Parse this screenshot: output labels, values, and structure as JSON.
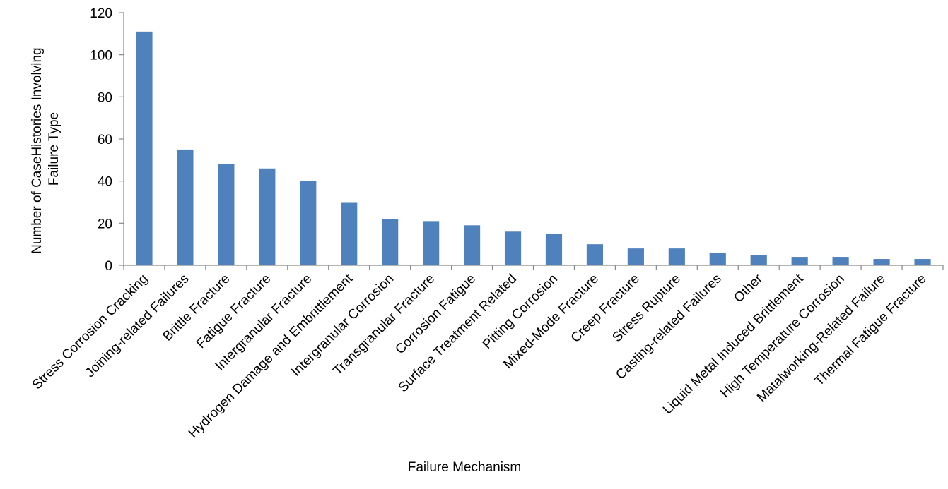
{
  "chart_data": {
    "type": "bar",
    "title": "",
    "xlabel": "Failure Mechanism",
    "ylabel_lines": [
      "Number of CaseHistories Involving",
      "Failure Type"
    ],
    "ylim": [
      0,
      120
    ],
    "yticks": [
      0,
      20,
      40,
      60,
      80,
      100,
      120
    ],
    "grid": false,
    "legend": "none",
    "bar_color": "#4F81BD",
    "categories": [
      "Stress Corrosion Cracking",
      "Joining-related Failures",
      "Brittle Fracture",
      "Fatigue Fracture",
      "Intergranular Fracture",
      "Hydrogen Damage and Embrittlement",
      "Intergranular Corrosion",
      "Transgranular Fracture",
      "Corrosion Fatigue",
      "Surface Treatment Related",
      "Pitting Corrosion",
      "Mixed-Mode Fracture",
      "Creep Fracture",
      "Stress Rupture",
      "Casting-related Failures",
      "Other",
      "Liquid Metal Induced Brittlement",
      "High Temperature Corrosion",
      "Matalworking-Related Failure",
      "Thermal Fatigue Fracture"
    ],
    "values": [
      111,
      55,
      48,
      46,
      40,
      30,
      22,
      21,
      19,
      16,
      15,
      10,
      8,
      8,
      6,
      5,
      4,
      4,
      3,
      3
    ]
  }
}
